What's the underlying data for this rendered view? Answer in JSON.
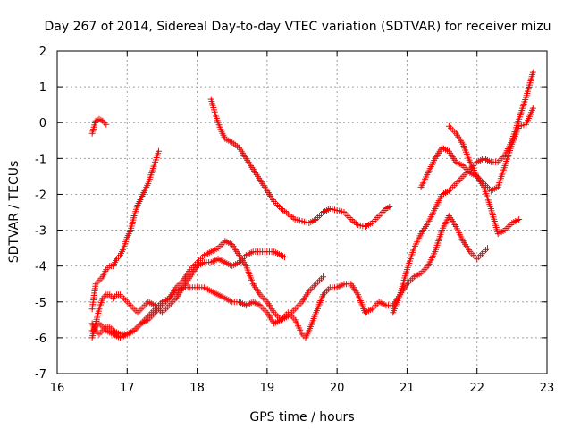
{
  "chart_data": {
    "type": "scatter",
    "title": "Day 267 of 2014, Sidereal Day-to-day VTEC variation (SDTVAR) for receiver mizu",
    "xlabel": "GPS time / hours",
    "ylabel": "SDTVAR / TECUs",
    "xlim": [
      16,
      23
    ],
    "ylim": [
      -7,
      2
    ],
    "x_ticks": [
      "16",
      "17",
      "18",
      "19",
      "20",
      "21",
      "22",
      "23"
    ],
    "y_ticks": [
      "2",
      "1",
      "0",
      "-1",
      "-2",
      "-3",
      "-4",
      "-5",
      "-6",
      "-7"
    ],
    "grid": true,
    "marker": "+",
    "color": "#ff0000",
    "series": [
      {
        "points": [
          [
            16.5,
            -0.3
          ],
          [
            16.55,
            0.05
          ],
          [
            16.6,
            0.1
          ],
          [
            16.65,
            0.05
          ],
          [
            16.7,
            -0.05
          ]
        ]
      },
      {
        "points": [
          [
            16.5,
            -5.2
          ],
          [
            16.55,
            -4.5
          ],
          [
            16.6,
            -4.4
          ],
          [
            16.65,
            -4.3
          ],
          [
            16.7,
            -4.1
          ],
          [
            16.75,
            -4.0
          ],
          [
            16.8,
            -4.0
          ],
          [
            16.85,
            -3.8
          ],
          [
            16.9,
            -3.7
          ],
          [
            16.95,
            -3.5
          ],
          [
            17.0,
            -3.2
          ],
          [
            17.05,
            -3.0
          ],
          [
            17.1,
            -2.6
          ],
          [
            17.15,
            -2.3
          ],
          [
            17.2,
            -2.1
          ],
          [
            17.25,
            -1.9
          ],
          [
            17.3,
            -1.7
          ],
          [
            17.35,
            -1.4
          ],
          [
            17.4,
            -1.1
          ],
          [
            17.45,
            -0.8
          ]
        ]
      },
      {
        "points": [
          [
            16.5,
            -6.0
          ],
          [
            16.55,
            -5.6
          ],
          [
            16.6,
            -5.2
          ],
          [
            16.65,
            -4.9
          ],
          [
            16.7,
            -4.8
          ],
          [
            16.75,
            -4.8
          ],
          [
            16.8,
            -4.9
          ],
          [
            16.85,
            -4.8
          ],
          [
            16.9,
            -4.8
          ],
          [
            16.95,
            -4.9
          ],
          [
            17.0,
            -5.0
          ],
          [
            17.05,
            -5.1
          ],
          [
            17.1,
            -5.2
          ],
          [
            17.15,
            -5.3
          ],
          [
            17.2,
            -5.2
          ],
          [
            17.3,
            -5.0
          ],
          [
            17.4,
            -5.1
          ],
          [
            17.5,
            -5.3
          ],
          [
            17.6,
            -5.1
          ],
          [
            17.7,
            -4.9
          ],
          [
            17.8,
            -4.6
          ],
          [
            17.9,
            -4.3
          ],
          [
            18.0,
            -4.0
          ],
          [
            18.1,
            -3.9
          ],
          [
            18.2,
            -3.9
          ],
          [
            18.3,
            -3.8
          ],
          [
            18.4,
            -3.9
          ],
          [
            18.5,
            -4.0
          ],
          [
            18.6,
            -3.9
          ],
          [
            18.7,
            -3.7
          ],
          [
            18.8,
            -3.6
          ],
          [
            18.9,
            -3.6
          ],
          [
            19.0,
            -3.6
          ],
          [
            19.1,
            -3.6
          ],
          [
            19.2,
            -3.7
          ],
          [
            19.25,
            -3.75
          ]
        ]
      },
      {
        "points": [
          [
            16.5,
            -5.6
          ],
          [
            16.55,
            -5.8
          ],
          [
            16.6,
            -5.9
          ],
          [
            16.65,
            -5.8
          ],
          [
            16.7,
            -5.7
          ],
          [
            16.75,
            -5.7
          ],
          [
            16.8,
            -5.8
          ],
          [
            16.9,
            -5.9
          ],
          [
            17.0,
            -5.9
          ],
          [
            17.1,
            -5.8
          ],
          [
            17.2,
            -5.6
          ],
          [
            17.3,
            -5.4
          ],
          [
            17.4,
            -5.2
          ],
          [
            17.5,
            -5.0
          ],
          [
            17.6,
            -4.9
          ],
          [
            17.7,
            -4.7
          ],
          [
            17.8,
            -4.6
          ],
          [
            17.9,
            -4.6
          ],
          [
            18.0,
            -4.6
          ],
          [
            18.1,
            -4.6
          ],
          [
            18.2,
            -4.7
          ],
          [
            18.3,
            -4.8
          ],
          [
            18.4,
            -4.9
          ],
          [
            18.5,
            -5.0
          ],
          [
            18.6,
            -5.0
          ],
          [
            18.7,
            -5.1
          ],
          [
            18.8,
            -5.0
          ],
          [
            18.9,
            -5.1
          ],
          [
            19.0,
            -5.3
          ],
          [
            19.1,
            -5.6
          ],
          [
            19.2,
            -5.5
          ],
          [
            19.3,
            -5.3
          ],
          [
            19.4,
            -5.5
          ],
          [
            19.5,
            -5.9
          ],
          [
            19.55,
            -6.0
          ],
          [
            19.6,
            -5.8
          ],
          [
            19.7,
            -5.3
          ],
          [
            19.8,
            -4.8
          ],
          [
            19.9,
            -4.6
          ],
          [
            20.0,
            -4.6
          ],
          [
            20.1,
            -4.5
          ],
          [
            20.2,
            -4.5
          ],
          [
            20.3,
            -4.8
          ],
          [
            20.4,
            -5.3
          ],
          [
            20.5,
            -5.2
          ],
          [
            20.6,
            -5.0
          ],
          [
            20.7,
            -5.1
          ],
          [
            20.8,
            -5.1
          ],
          [
            20.9,
            -4.8
          ],
          [
            21.0,
            -4.5
          ],
          [
            21.1,
            -4.3
          ],
          [
            21.2,
            -4.2
          ],
          [
            21.3,
            -4.0
          ],
          [
            21.4,
            -3.6
          ],
          [
            21.5,
            -3.0
          ],
          [
            21.6,
            -2.6
          ],
          [
            21.7,
            -2.9
          ],
          [
            21.8,
            -3.3
          ],
          [
            21.9,
            -3.6
          ],
          [
            22.0,
            -3.8
          ],
          [
            22.1,
            -3.6
          ],
          [
            22.15,
            -3.5
          ]
        ]
      },
      {
        "points": [
          [
            16.5,
            -5.8
          ],
          [
            16.6,
            -5.6
          ],
          [
            16.7,
            -5.8
          ],
          [
            16.8,
            -5.9
          ],
          [
            16.9,
            -6.0
          ],
          [
            17.0,
            -5.9
          ],
          [
            17.1,
            -5.8
          ],
          [
            17.2,
            -5.6
          ],
          [
            17.3,
            -5.5
          ],
          [
            17.4,
            -5.3
          ],
          [
            17.5,
            -5.1
          ],
          [
            17.6,
            -4.9
          ],
          [
            17.7,
            -4.6
          ],
          [
            17.8,
            -4.4
          ],
          [
            17.9,
            -4.1
          ],
          [
            18.0,
            -3.9
          ],
          [
            18.1,
            -3.7
          ],
          [
            18.2,
            -3.6
          ],
          [
            18.3,
            -3.5
          ],
          [
            18.4,
            -3.3
          ],
          [
            18.5,
            -3.4
          ],
          [
            18.6,
            -3.7
          ],
          [
            18.7,
            -4.0
          ],
          [
            18.8,
            -4.5
          ],
          [
            18.9,
            -4.8
          ],
          [
            19.0,
            -5.0
          ],
          [
            19.1,
            -5.3
          ],
          [
            19.2,
            -5.5
          ],
          [
            19.3,
            -5.4
          ],
          [
            19.4,
            -5.2
          ],
          [
            19.5,
            -5.0
          ],
          [
            19.6,
            -4.7
          ],
          [
            19.7,
            -4.5
          ],
          [
            19.8,
            -4.3
          ]
        ]
      },
      {
        "points": [
          [
            18.2,
            0.65
          ],
          [
            18.25,
            0.3
          ],
          [
            18.3,
            0.0
          ],
          [
            18.35,
            -0.25
          ],
          [
            18.4,
            -0.45
          ],
          [
            18.5,
            -0.55
          ],
          [
            18.6,
            -0.7
          ],
          [
            18.7,
            -1.0
          ],
          [
            18.8,
            -1.3
          ],
          [
            18.9,
            -1.6
          ],
          [
            19.0,
            -1.9
          ],
          [
            19.1,
            -2.2
          ],
          [
            19.2,
            -2.4
          ],
          [
            19.3,
            -2.55
          ],
          [
            19.4,
            -2.7
          ],
          [
            19.5,
            -2.75
          ],
          [
            19.6,
            -2.8
          ],
          [
            19.7,
            -2.7
          ],
          [
            19.8,
            -2.5
          ],
          [
            19.9,
            -2.4
          ],
          [
            20.0,
            -2.45
          ],
          [
            20.1,
            -2.5
          ],
          [
            20.2,
            -2.7
          ],
          [
            20.3,
            -2.85
          ],
          [
            20.4,
            -2.9
          ],
          [
            20.5,
            -2.8
          ],
          [
            20.6,
            -2.6
          ],
          [
            20.7,
            -2.4
          ],
          [
            20.75,
            -2.35
          ]
        ]
      },
      {
        "points": [
          [
            20.8,
            -5.3
          ],
          [
            20.9,
            -4.8
          ],
          [
            21.0,
            -4.1
          ],
          [
            21.1,
            -3.5
          ],
          [
            21.2,
            -3.1
          ],
          [
            21.3,
            -2.8
          ],
          [
            21.4,
            -2.4
          ],
          [
            21.5,
            -2.0
          ],
          [
            21.6,
            -1.9
          ],
          [
            21.7,
            -1.7
          ],
          [
            21.8,
            -1.5
          ],
          [
            21.9,
            -1.3
          ],
          [
            22.0,
            -1.1
          ],
          [
            22.1,
            -1.0
          ],
          [
            22.2,
            -1.1
          ],
          [
            22.3,
            -1.1
          ],
          [
            22.4,
            -0.9
          ],
          [
            22.5,
            -0.5
          ],
          [
            22.6,
            0.1
          ],
          [
            22.7,
            0.7
          ],
          [
            22.8,
            1.4
          ]
        ]
      },
      {
        "points": [
          [
            21.2,
            -1.8
          ],
          [
            21.3,
            -1.4
          ],
          [
            21.4,
            -1.0
          ],
          [
            21.5,
            -0.7
          ],
          [
            21.6,
            -0.8
          ],
          [
            21.7,
            -1.1
          ],
          [
            21.8,
            -1.2
          ],
          [
            21.9,
            -1.4
          ],
          [
            22.0,
            -1.5
          ],
          [
            22.1,
            -1.7
          ],
          [
            22.2,
            -1.9
          ],
          [
            22.3,
            -1.8
          ],
          [
            22.4,
            -1.2
          ],
          [
            22.5,
            -0.6
          ],
          [
            22.6,
            -0.1
          ],
          [
            22.7,
            -0.05
          ],
          [
            22.8,
            0.4
          ]
        ]
      },
      {
        "points": [
          [
            21.6,
            -0.1
          ],
          [
            21.7,
            -0.3
          ],
          [
            21.8,
            -0.6
          ],
          [
            21.9,
            -1.1
          ],
          [
            22.0,
            -1.5
          ],
          [
            22.1,
            -1.8
          ],
          [
            22.2,
            -2.4
          ],
          [
            22.3,
            -3.1
          ],
          [
            22.4,
            -3.0
          ],
          [
            22.5,
            -2.8
          ],
          [
            22.6,
            -2.7
          ]
        ]
      }
    ]
  }
}
